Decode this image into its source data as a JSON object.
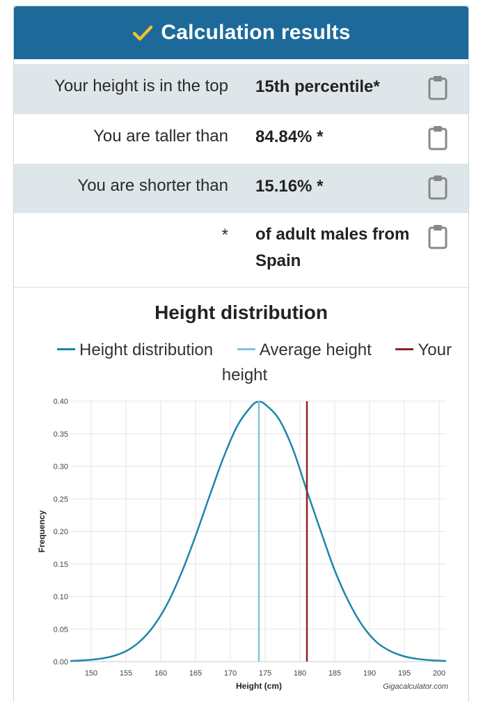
{
  "header": {
    "title": "Calculation results",
    "check_color": "#f2c12e",
    "bg": "#1d6a9a"
  },
  "results": [
    {
      "label": "Your height is in the top",
      "value": "15th percentile*"
    },
    {
      "label": "You are taller than",
      "value": "84.84% *"
    },
    {
      "label": "You are shorter than",
      "value": "15.16% *"
    },
    {
      "label": "*",
      "value": "of adult males from Spain"
    }
  ],
  "icons": {
    "copy": "clipboard-icon",
    "check": "check-icon"
  },
  "chart_data": {
    "type": "line",
    "title": "Height distribution",
    "xlabel": "Height (cm)",
    "ylabel": "Frequency",
    "xlim": [
      147,
      201
    ],
    "ylim": [
      0,
      0.4
    ],
    "xticks": [
      150,
      155,
      160,
      165,
      170,
      175,
      180,
      185,
      190,
      195,
      200
    ],
    "yticks": [
      "0.00",
      "0.05",
      "0.10",
      "0.15",
      "0.20",
      "0.25",
      "0.30",
      "0.35",
      "0.40"
    ],
    "grid": true,
    "legend": "top",
    "credit": "Gigacalculator.com",
    "series": [
      {
        "name": "Height distribution",
        "color": "#1b86ad",
        "x": [
          147,
          149,
          151,
          153,
          155,
          157,
          159,
          161,
          163,
          165,
          167,
          169,
          171,
          173,
          174,
          175,
          177,
          179,
          181,
          183,
          185,
          187,
          189,
          191,
          193,
          195,
          197,
          199,
          201
        ],
        "y": [
          0.001,
          0.002,
          0.004,
          0.008,
          0.016,
          0.031,
          0.055,
          0.09,
          0.137,
          0.193,
          0.254,
          0.313,
          0.362,
          0.392,
          0.399,
          0.395,
          0.372,
          0.326,
          0.262,
          0.2,
          0.14,
          0.092,
          0.055,
          0.03,
          0.016,
          0.008,
          0.004,
          0.002,
          0.001
        ]
      },
      {
        "name": "Average height",
        "color": "#7fc3dc",
        "x": [
          174.1,
          174.1
        ],
        "y": [
          0,
          0.4
        ]
      },
      {
        "name": "Your height",
        "color": "#8b2323",
        "x": [
          181,
          181
        ],
        "y": [
          0,
          0.4
        ]
      }
    ]
  }
}
